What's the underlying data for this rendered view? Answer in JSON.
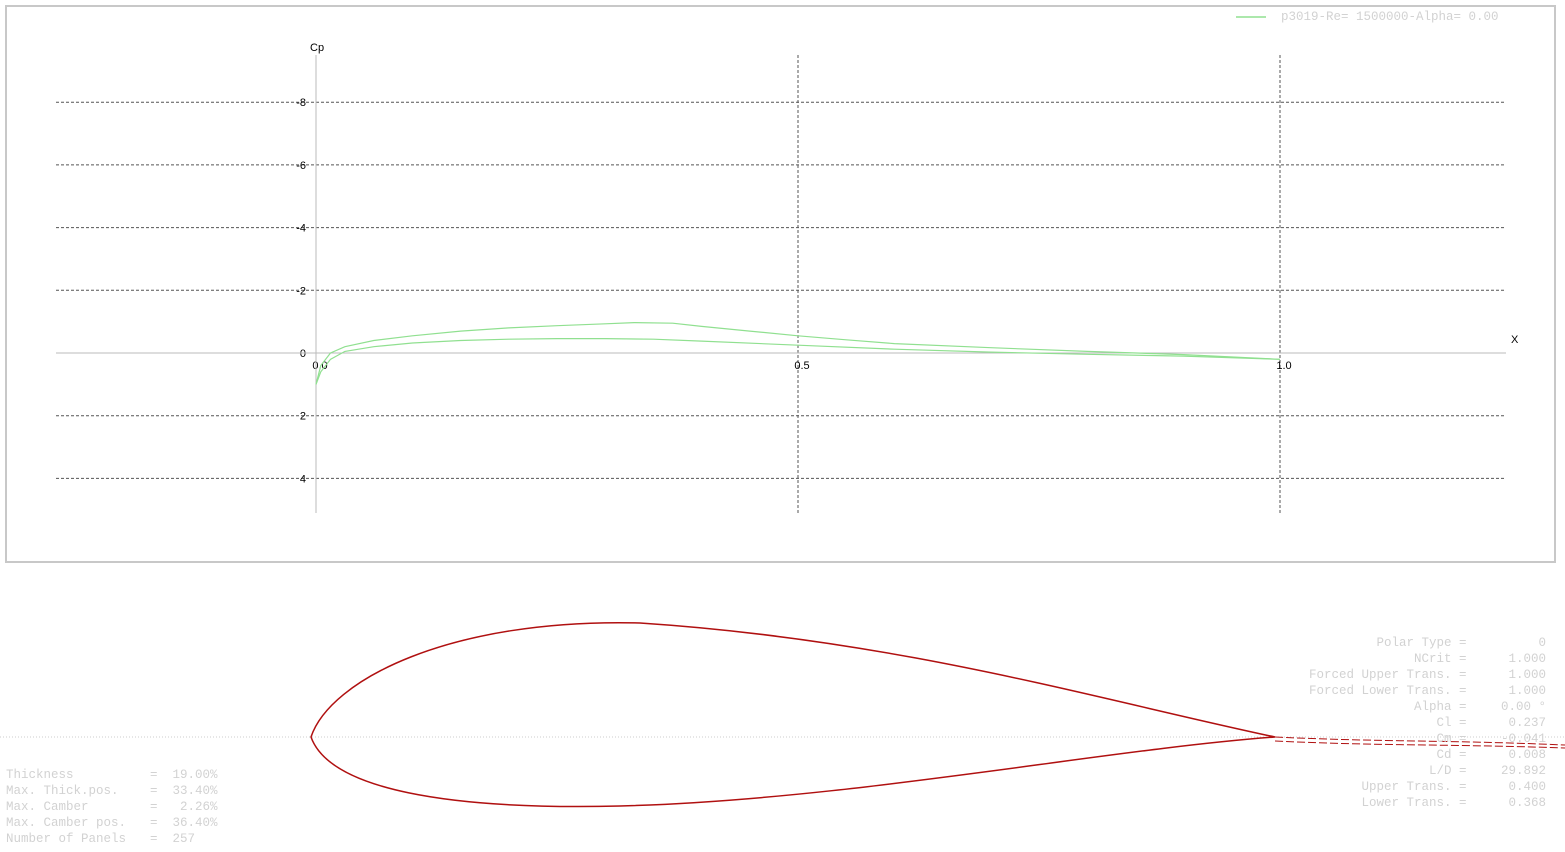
{
  "chart_data": {
    "type": "line",
    "xlabel": "X",
    "ylabel": "Cp",
    "xlim": [
      -0.54,
      1.23
    ],
    "ylim": [
      -9,
      5
    ],
    "y_inverted": true,
    "grid": true,
    "x_ticks": [
      "0.0",
      "0.5",
      "1.0"
    ],
    "x_tick_values": [
      0,
      0.5,
      1.0
    ],
    "y_ticks": [
      "-8",
      "-6",
      "-4",
      "-2",
      "0",
      "2",
      "4"
    ],
    "y_tick_values": [
      -8,
      -6,
      -4,
      -2,
      0,
      2,
      4
    ],
    "legend": {
      "position": "top-right",
      "entry": "p3019-Re= 1500000-Alpha= 0.00",
      "color": "#90e090"
    },
    "series": [
      {
        "surface": "upper",
        "color": "#90e090",
        "x": [
          0.0,
          0.005,
          0.015,
          0.03,
          0.06,
          0.1,
          0.15,
          0.2,
          0.25,
          0.3,
          0.33,
          0.37,
          0.4,
          0.45,
          0.5,
          0.55,
          0.6,
          0.7,
          0.8,
          0.9,
          1.0
        ],
        "y": [
          1.0,
          0.4,
          0.0,
          -0.2,
          -0.4,
          -0.55,
          -0.7,
          -0.8,
          -0.87,
          -0.93,
          -0.97,
          -0.95,
          -0.85,
          -0.7,
          -0.55,
          -0.42,
          -0.3,
          -0.17,
          -0.05,
          0.05,
          0.2
        ]
      },
      {
        "surface": "lower",
        "color": "#90e090",
        "x": [
          0.0,
          0.005,
          0.015,
          0.03,
          0.06,
          0.1,
          0.15,
          0.2,
          0.25,
          0.3,
          0.35,
          0.4,
          0.5,
          0.6,
          0.7,
          0.8,
          0.9,
          1.0
        ],
        "y": [
          1.0,
          0.6,
          0.2,
          -0.05,
          -0.2,
          -0.32,
          -0.4,
          -0.44,
          -0.46,
          -0.46,
          -0.44,
          -0.38,
          -0.25,
          -0.12,
          -0.03,
          0.04,
          0.1,
          0.2
        ]
      }
    ]
  },
  "foil_color": "#b01010",
  "foil_info": [
    {
      "label": "Thickness",
      "value": "19.00%"
    },
    {
      "label": "Max. Thick.pos.",
      "value": "33.40%"
    },
    {
      "label": "Max. Camber",
      "value": " 2.26%"
    },
    {
      "label": "Max. Camber pos.",
      "value": "36.40%"
    },
    {
      "label": "Number of Panels",
      "value": "257"
    }
  ],
  "polar_info": [
    {
      "label": "Polar Type",
      "value": "0"
    },
    {
      "label": "NCrit",
      "value": "1.000"
    },
    {
      "label": "Forced Upper Trans.",
      "value": "1.000"
    },
    {
      "label": "Forced Lower Trans.",
      "value": "1.000"
    },
    {
      "label": "Alpha",
      "value": "0.00 °"
    },
    {
      "label": "Cl",
      "value": "0.237"
    },
    {
      "label": "Cm",
      "value": "-0.041"
    },
    {
      "label": "Cd",
      "value": "0.008"
    },
    {
      "label": "L/D",
      "value": "29.892"
    },
    {
      "label": "Upper Trans.",
      "value": "0.400"
    },
    {
      "label": "Lower Trans.",
      "value": "0.368"
    }
  ]
}
